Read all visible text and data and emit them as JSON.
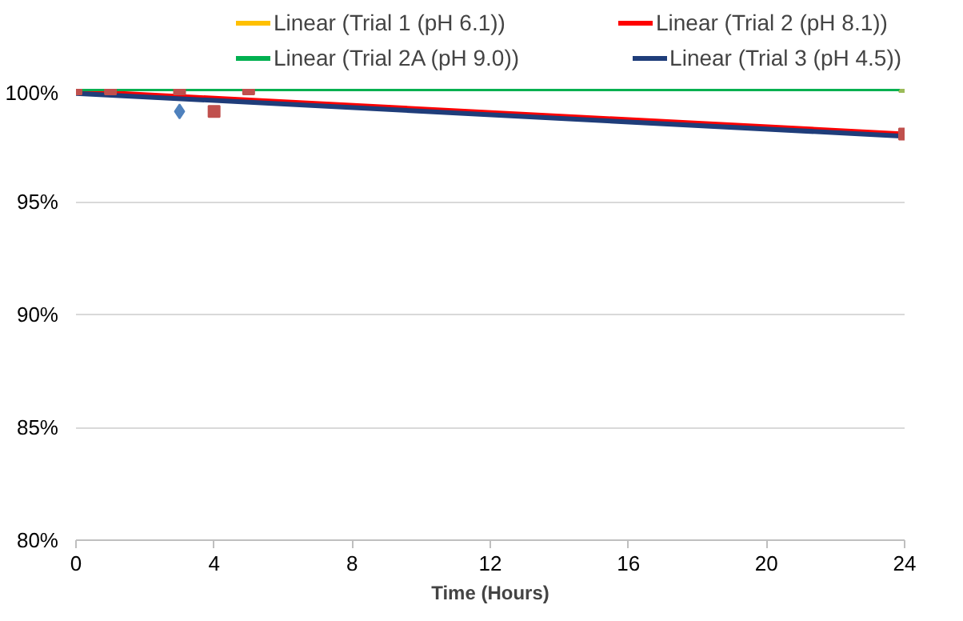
{
  "chart_data": {
    "type": "scatter",
    "xlabel": "Time (Hours)",
    "xlim": [
      0,
      24
    ],
    "xticks": [
      0,
      4,
      8,
      12,
      16,
      20,
      24
    ],
    "ylim": [
      80,
      100
    ],
    "yticks": [
      {
        "value": 80,
        "label": "80%"
      },
      {
        "value": 85,
        "label": "85%"
      },
      {
        "value": 90,
        "label": "90%"
      },
      {
        "value": 95,
        "label": "95%"
      },
      {
        "value": 100,
        "label": "100%"
      }
    ],
    "grid": "y",
    "legend": "top",
    "series": [
      {
        "marker": "diamond",
        "color": "#4f81bd",
        "x": [
          3
        ],
        "values": [
          99
        ]
      },
      {
        "marker": "square",
        "color": "#c0504d",
        "x": [
          0,
          1,
          3,
          4,
          5,
          24
        ],
        "values": [
          100,
          100,
          100,
          99,
          100,
          98
        ]
      },
      {
        "marker": "triangle",
        "color": "#9bbb59",
        "x": [
          24
        ],
        "values": [
          100
        ]
      },
      {
        "type": "line",
        "name": "Linear (Trial 1 (pH 6.1))",
        "color": "#ffc000",
        "values": [
          null,
          null
        ]
      },
      {
        "type": "line",
        "name": "Linear (Trial 2 (pH 8.1))",
        "color": "#ff0000",
        "x": [
          0,
          24
        ],
        "values": [
          99.9,
          98.0
        ]
      },
      {
        "type": "line",
        "name": "Linear (Trial 2A (pH 9.0))",
        "color": "#00b050",
        "x": [
          0,
          24
        ],
        "values": [
          100,
          100
        ]
      },
      {
        "type": "line",
        "name": "Linear (Trial 3 (pH 4.5))",
        "color": "#1f3d7a",
        "x": [
          0,
          24
        ],
        "values": [
          99.8,
          97.9
        ]
      }
    ]
  }
}
